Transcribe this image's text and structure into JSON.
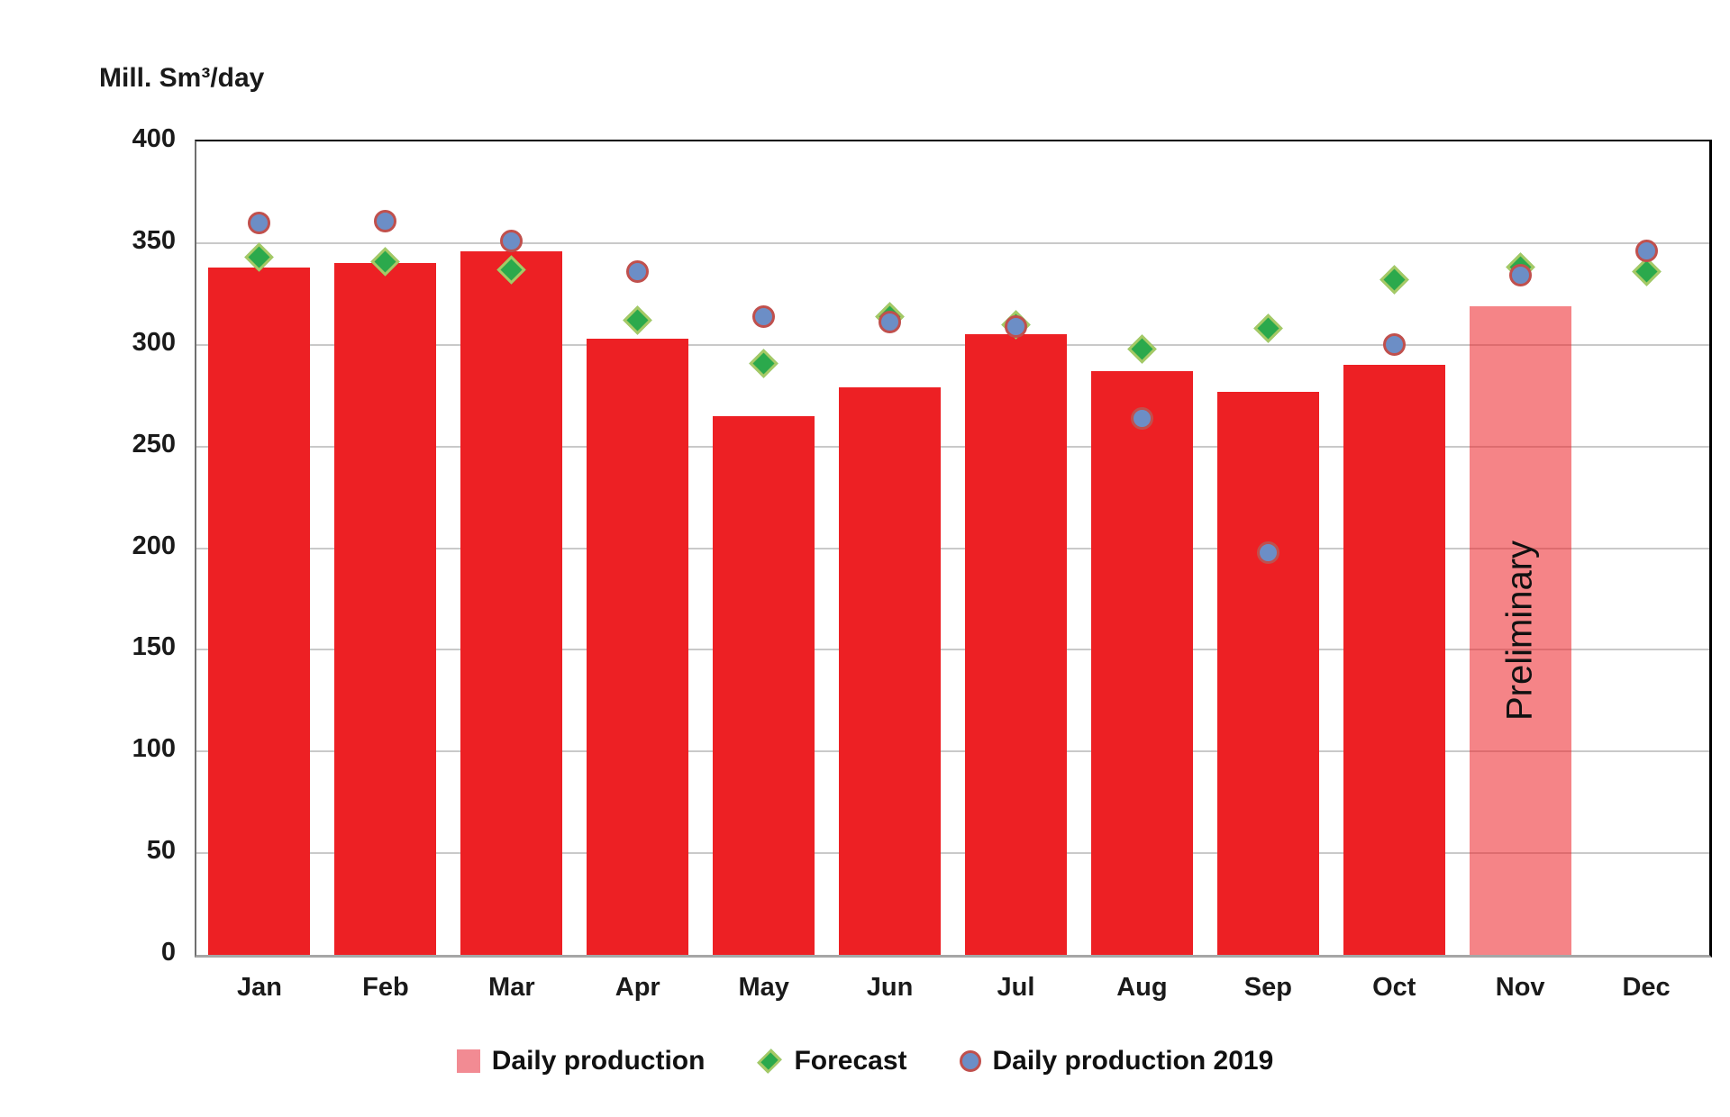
{
  "title": "Mill. Sm³/day",
  "annotations": {
    "preliminary": "Preliminary"
  },
  "legend": {
    "items": [
      {
        "label": "Daily production",
        "marker": "square"
      },
      {
        "label": "Forecast",
        "marker": "diamond"
      },
      {
        "label": "Daily production 2019",
        "marker": "circle"
      }
    ]
  },
  "colors": {
    "bar_red": "#ed2024",
    "bar_preliminary_pink": "#f58486",
    "forecast_green_fill": "#2ba94c",
    "forecast_green_border": "#a6c965",
    "production2019_blue_fill": "#6c8ec6",
    "production2019_red_border": "#c0504d",
    "gridline_gray": "#c9c9c9",
    "axis_gray": "#a6a6a6",
    "border_black": "#000000"
  },
  "chart_data": {
    "type": "bar",
    "title": "Mill. Sm³/day",
    "ylabel": "Mill. Sm³/day",
    "xlabel": "",
    "ylim": [
      0,
      400
    ],
    "ytick_step": 50,
    "grid": true,
    "legend_position": "bottom",
    "categories": [
      "Jan",
      "Feb",
      "Mar",
      "Apr",
      "May",
      "Jun",
      "Jul",
      "Aug",
      "Sep",
      "Oct",
      "Nov",
      "Dec"
    ],
    "series": [
      {
        "name": "Daily production",
        "type": "bar",
        "values": [
          338,
          340,
          346,
          303,
          265,
          279,
          305,
          287,
          277,
          290,
          319,
          null
        ]
      },
      {
        "name": "Forecast",
        "type": "scatter",
        "marker": "diamond",
        "values": [
          343,
          341,
          337,
          312,
          291,
          314,
          310,
          298,
          308,
          332,
          338,
          336
        ]
      },
      {
        "name": "Daily production 2019",
        "type": "scatter",
        "marker": "circle",
        "values": [
          360,
          361,
          351,
          336,
          314,
          311,
          309,
          264,
          198,
          300,
          334,
          346
        ]
      }
    ],
    "preliminary_month": "Nov",
    "preliminary_bar_label": "Preliminary"
  }
}
